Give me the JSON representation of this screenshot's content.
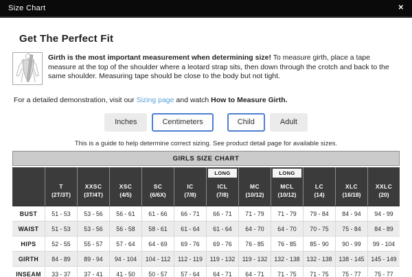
{
  "modal": {
    "title": "Size Chart",
    "close_icon": "✕"
  },
  "intro": {
    "heading": "Get The Perfect Fit",
    "bold_lead": "Girth is the most important measurement when determining size!",
    "body_text": " To measure girth, place a tape measure at the top of the shoulder where a leotard strap sits, then down through the crotch and back to the same shoulder. Measuring tape should be close to the body but not tight.",
    "demo_prefix": "For a detailed demonstration, visit our ",
    "demo_link": "Sizing page",
    "demo_middle": " and watch ",
    "demo_bold": "How to Measure Girth."
  },
  "toggles": {
    "units": [
      {
        "label": "Inches",
        "selected": false
      },
      {
        "label": "Centimeters",
        "selected": true
      }
    ],
    "age": [
      {
        "label": "Child",
        "selected": true
      },
      {
        "label": "Adult",
        "selected": false
      }
    ]
  },
  "note": "This is a guide to help determine correct sizing. See product detail page for available sizes.",
  "chart": {
    "title": "GIRLS SIZE CHART",
    "long_label": "LONG",
    "columns": [
      {
        "size": "T",
        "range": "(2T/3T)",
        "long": false
      },
      {
        "size": "XXSC",
        "range": "(3T/4T)",
        "long": false
      },
      {
        "size": "XSC",
        "range": "(4/5)",
        "long": false
      },
      {
        "size": "SC",
        "range": "(6/6X)",
        "long": false
      },
      {
        "size": "IC",
        "range": "(7/8)",
        "long": false
      },
      {
        "size": "ICL",
        "range": "(7/8)",
        "long": true
      },
      {
        "size": "MC",
        "range": "(10/12)",
        "long": false
      },
      {
        "size": "MCL",
        "range": "(10/12)",
        "long": true
      },
      {
        "size": "LC",
        "range": "(14)",
        "long": false
      },
      {
        "size": "XLC",
        "range": "(16/18)",
        "long": false
      },
      {
        "size": "XXLC",
        "range": "(20)",
        "long": false
      }
    ],
    "rows": [
      {
        "label": "BUST",
        "values": [
          "51 - 53",
          "53 - 56",
          "56 - 61",
          "61 - 66",
          "66 - 71",
          "66 - 71",
          "71 - 79",
          "71 - 79",
          "79 - 84",
          "84 - 94",
          "94 - 99"
        ]
      },
      {
        "label": "WAIST",
        "values": [
          "51 - 53",
          "53 - 56",
          "56 - 58",
          "58 - 61",
          "61 - 64",
          "61 - 64",
          "64 - 70",
          "64 - 70",
          "70 - 75",
          "75 - 84",
          "84 - 89"
        ]
      },
      {
        "label": "HIPS",
        "values": [
          "52 - 55",
          "55 - 57",
          "57 - 64",
          "64 - 69",
          "69 - 76",
          "69 - 76",
          "76 - 85",
          "76 - 85",
          "85 - 90",
          "90 - 99",
          "99 - 104"
        ]
      },
      {
        "label": "GIRTH",
        "values": [
          "84 - 89",
          "89 - 94",
          "94 - 104",
          "104 - 112",
          "112 - 119",
          "119 - 132",
          "119 - 132",
          "132 - 138",
          "132 - 138",
          "138 - 145",
          "145 - 149"
        ]
      },
      {
        "label": "INSEAM",
        "values": [
          "33 - 37",
          "37 - 41",
          "41 - 50",
          "50 - 57",
          "57 - 64",
          "64 - 71",
          "64 - 71",
          "71 - 75",
          "71 - 75",
          "75 - 77",
          "75 - 77"
        ]
      }
    ]
  },
  "colors": {
    "topbar_bg": "#0a0a0a",
    "accent_blue": "#4d7fd2",
    "link_blue": "#58a0d8",
    "header_cell_bg": "#3b3b3b",
    "chart_title_bg": "#cbcbcb",
    "stripe_bg": "#ececec",
    "button_bg": "#ebebeb"
  }
}
